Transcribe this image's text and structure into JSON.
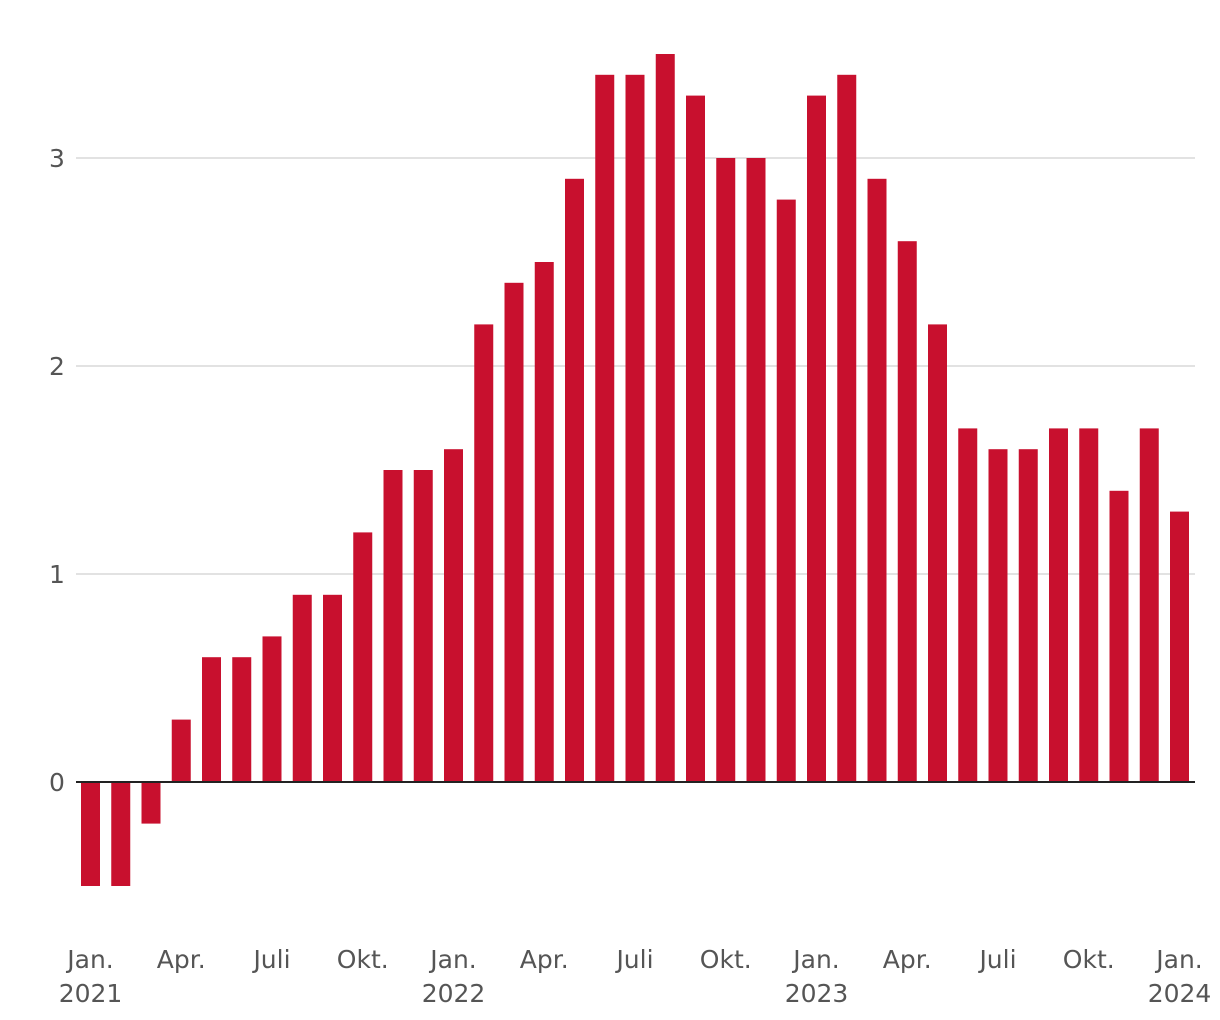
{
  "chart_data": {
    "type": "bar",
    "title": "",
    "xlabel": "",
    "ylabel": "",
    "ylim": [
      -0.65,
      3.6
    ],
    "y_ticks": [
      0,
      1,
      2,
      3
    ],
    "grid": true,
    "bar_color": "#c8102e",
    "grid_color": "#e2e2e2",
    "zero_line_color": "#222222",
    "x": [
      "2021-01",
      "2021-02",
      "2021-03",
      "2021-04",
      "2021-05",
      "2021-06",
      "2021-07",
      "2021-08",
      "2021-09",
      "2021-10",
      "2021-11",
      "2021-12",
      "2022-01",
      "2022-02",
      "2022-03",
      "2022-04",
      "2022-05",
      "2022-06",
      "2022-07",
      "2022-08",
      "2022-09",
      "2022-10",
      "2022-11",
      "2022-12",
      "2023-01",
      "2023-02",
      "2023-03",
      "2023-04",
      "2023-05",
      "2023-06",
      "2023-07",
      "2023-08",
      "2023-09",
      "2023-10",
      "2023-11",
      "2023-12",
      "2024-01"
    ],
    "values": [
      -0.5,
      -0.5,
      -0.2,
      0.3,
      0.6,
      0.6,
      0.7,
      0.9,
      0.9,
      1.2,
      1.5,
      1.5,
      1.6,
      2.2,
      2.4,
      2.5,
      2.9,
      3.4,
      3.4,
      3.5,
      3.3,
      3.0,
      3.0,
      2.8,
      3.3,
      3.4,
      2.9,
      2.6,
      2.2,
      1.7,
      1.6,
      1.6,
      1.7,
      1.7,
      1.4,
      1.7,
      1.3
    ],
    "x_tick_labels": [
      {
        "index": 0,
        "month": "Jan.",
        "year": "2021"
      },
      {
        "index": 3,
        "month": "Apr.",
        "year": ""
      },
      {
        "index": 6,
        "month": "Juli",
        "year": ""
      },
      {
        "index": 9,
        "month": "Okt.",
        "year": ""
      },
      {
        "index": 12,
        "month": "Jan.",
        "year": "2022"
      },
      {
        "index": 15,
        "month": "Apr.",
        "year": ""
      },
      {
        "index": 18,
        "month": "Juli",
        "year": ""
      },
      {
        "index": 21,
        "month": "Okt.",
        "year": ""
      },
      {
        "index": 24,
        "month": "Jan.",
        "year": "2023"
      },
      {
        "index": 27,
        "month": "Apr.",
        "year": ""
      },
      {
        "index": 30,
        "month": "Juli",
        "year": ""
      },
      {
        "index": 33,
        "month": "Okt.",
        "year": ""
      },
      {
        "index": 36,
        "month": "Jan.",
        "year": "2024"
      }
    ]
  }
}
